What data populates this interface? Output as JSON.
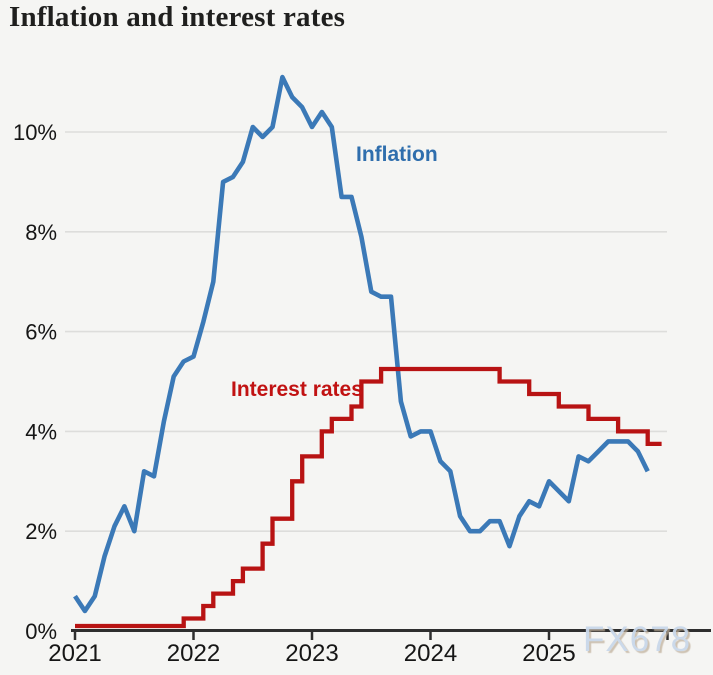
{
  "page": {
    "background_color": "#f5f5f3",
    "watermark": "FX678"
  },
  "chart_data": {
    "type": "line",
    "title": "Inflation and interest rates",
    "xlabel": "",
    "ylabel": "",
    "legend_position": "inline-labels",
    "grid": "horizontal",
    "colors": {
      "grid": "#dddddb",
      "axis": "#2e2e2e",
      "tick_text": "#161616",
      "title_text": "#1f1f1e",
      "watermark_text": "#c9d8ea"
    },
    "x_axis": {
      "range": [
        2021,
        2026.37
      ],
      "ticks": [
        {
          "value": 2021,
          "label": "2021"
        },
        {
          "value": 2022,
          "label": "2022"
        },
        {
          "value": 2023,
          "label": "2023"
        },
        {
          "value": 2024,
          "label": "2024"
        },
        {
          "value": 2025,
          "label": "2025"
        },
        {
          "value": 2026,
          "label": ""
        }
      ]
    },
    "y_axis": {
      "range": [
        0,
        11.9
      ],
      "unit": "%",
      "ticks": [
        {
          "value": 0,
          "label": "0%"
        },
        {
          "value": 2,
          "label": "2%"
        },
        {
          "value": 4,
          "label": "4%"
        },
        {
          "value": 6,
          "label": "6%"
        },
        {
          "value": 8,
          "label": "8%"
        },
        {
          "value": 10,
          "label": "10%"
        }
      ]
    },
    "series": [
      {
        "name": "Inflation",
        "type": "line",
        "color": "#3b79b7",
        "x_start": 2021.0,
        "x_interval_months": 1,
        "values": [
          0.7,
          0.4,
          0.7,
          1.5,
          2.1,
          2.5,
          2.0,
          3.2,
          3.1,
          4.2,
          5.1,
          5.4,
          5.5,
          6.2,
          7.0,
          9.0,
          9.1,
          9.4,
          10.1,
          9.9,
          10.1,
          11.1,
          10.7,
          10.5,
          10.1,
          10.4,
          10.1,
          8.7,
          8.7,
          7.9,
          6.8,
          6.7,
          6.7,
          4.6,
          3.9,
          4.0,
          4.0,
          3.4,
          3.2,
          2.3,
          2.0,
          2.0,
          2.2,
          2.2,
          1.7,
          2.3,
          2.6,
          2.5,
          3.0,
          2.8,
          2.6,
          3.5,
          3.4,
          3.6,
          3.8,
          3.8,
          3.8,
          3.6,
          3.2
        ]
      },
      {
        "name": "Interest rates",
        "type": "step",
        "color": "#b81313",
        "steps": [
          [
            2021.0,
            0.1
          ],
          [
            2021.917,
            0.25
          ],
          [
            2022.083,
            0.5
          ],
          [
            2022.167,
            0.75
          ],
          [
            2022.333,
            1.0
          ],
          [
            2022.417,
            1.25
          ],
          [
            2022.583,
            1.75
          ],
          [
            2022.667,
            2.25
          ],
          [
            2022.833,
            3.0
          ],
          [
            2022.917,
            3.5
          ],
          [
            2023.083,
            4.0
          ],
          [
            2023.167,
            4.25
          ],
          [
            2023.333,
            4.5
          ],
          [
            2023.417,
            5.0
          ],
          [
            2023.583,
            5.25
          ],
          [
            2024.583,
            5.0
          ],
          [
            2024.833,
            4.75
          ],
          [
            2025.083,
            4.5
          ],
          [
            2025.333,
            4.25
          ],
          [
            2025.583,
            4.0
          ],
          [
            2025.833,
            3.75
          ]
        ],
        "x_end": 2025.95
      }
    ],
    "annotations": [
      {
        "text": "Inflation",
        "color": "#2f6ead"
      },
      {
        "text": "Interest rates",
        "color": "#c11212"
      }
    ]
  }
}
